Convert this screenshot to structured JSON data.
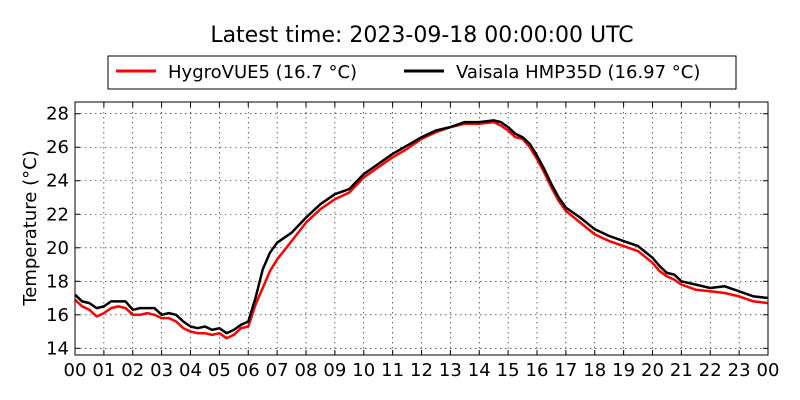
{
  "chart_data": {
    "type": "line",
    "title": "Latest time: 2023-09-18 00:00:00 UTC",
    "xlabel": "",
    "ylabel": "Temperature (°C)",
    "x_tick_labels": [
      "00",
      "01",
      "02",
      "03",
      "04",
      "05",
      "06",
      "07",
      "08",
      "09",
      "10",
      "11",
      "12",
      "13",
      "14",
      "15",
      "16",
      "17",
      "18",
      "19",
      "20",
      "21",
      "22",
      "23",
      "00"
    ],
    "y_ticks": [
      14,
      16,
      18,
      20,
      22,
      24,
      26,
      28
    ],
    "ylim": [
      13.6,
      28.7
    ],
    "xlim_hours": [
      0,
      24
    ],
    "grid": true,
    "legend_placement": "top-center",
    "series": [
      {
        "name": "HygroVUE5 (16.7 °C)",
        "color": "#ff0000",
        "x": [
          0,
          0.25,
          0.5,
          0.75,
          1,
          1.25,
          1.5,
          1.75,
          2,
          2.25,
          2.5,
          2.75,
          3,
          3.25,
          3.5,
          3.75,
          4,
          4.25,
          4.5,
          4.75,
          5,
          5.25,
          5.5,
          5.75,
          6,
          6.25,
          6.5,
          6.75,
          7,
          7.5,
          8,
          8.5,
          9,
          9.5,
          10,
          10.5,
          11,
          11.5,
          12,
          12.5,
          13,
          13.5,
          14,
          14.5,
          14.75,
          15,
          15.25,
          15.5,
          15.75,
          16,
          16.25,
          16.5,
          16.75,
          17,
          17.5,
          18,
          18.5,
          19,
          19.5,
          20,
          20.25,
          20.5,
          20.75,
          21,
          21.5,
          22,
          22.5,
          23,
          23.5,
          24
        ],
        "values": [
          16.9,
          16.5,
          16.3,
          15.9,
          16.1,
          16.4,
          16.5,
          16.4,
          16.0,
          16.0,
          16.1,
          16.0,
          15.8,
          15.8,
          15.6,
          15.2,
          15.0,
          14.9,
          14.9,
          14.8,
          14.9,
          14.6,
          14.8,
          15.2,
          15.3,
          16.6,
          17.6,
          18.6,
          19.3,
          20.4,
          21.5,
          22.3,
          22.9,
          23.3,
          24.2,
          24.8,
          25.4,
          25.9,
          26.5,
          26.9,
          27.2,
          27.4,
          27.4,
          27.5,
          27.3,
          27.0,
          26.6,
          26.5,
          26.0,
          25.3,
          24.5,
          23.6,
          22.8,
          22.2,
          21.5,
          20.8,
          20.4,
          20.1,
          19.8,
          19.1,
          18.6,
          18.3,
          18.1,
          17.8,
          17.5,
          17.4,
          17.3,
          17.1,
          16.8,
          16.7
        ]
      },
      {
        "name": "Vaisala HMP35D (16.97 °C)",
        "color": "#000000",
        "x": [
          0,
          0.25,
          0.5,
          0.75,
          1,
          1.25,
          1.5,
          1.75,
          2,
          2.25,
          2.5,
          2.75,
          3,
          3.25,
          3.5,
          3.75,
          4,
          4.25,
          4.5,
          4.75,
          5,
          5.25,
          5.5,
          5.75,
          6,
          6.25,
          6.5,
          6.75,
          7,
          7.5,
          8,
          8.5,
          9,
          9.5,
          10,
          10.5,
          11,
          11.5,
          12,
          12.5,
          13,
          13.5,
          14,
          14.5,
          14.75,
          15,
          15.25,
          15.5,
          15.75,
          16,
          16.25,
          16.5,
          16.75,
          17,
          17.5,
          18,
          18.5,
          19,
          19.5,
          20,
          20.25,
          20.5,
          20.75,
          21,
          21.5,
          22,
          22.5,
          23,
          23.5,
          24
        ],
        "values": [
          17.2,
          16.8,
          16.7,
          16.4,
          16.5,
          16.8,
          16.8,
          16.8,
          16.3,
          16.4,
          16.4,
          16.4,
          16.0,
          16.1,
          16.0,
          15.6,
          15.3,
          15.2,
          15.3,
          15.1,
          15.2,
          14.9,
          15.1,
          15.4,
          15.6,
          17.0,
          18.7,
          19.7,
          20.3,
          20.9,
          21.8,
          22.6,
          23.2,
          23.5,
          24.4,
          25.0,
          25.6,
          26.1,
          26.6,
          27.0,
          27.2,
          27.5,
          27.5,
          27.6,
          27.5,
          27.2,
          26.8,
          26.6,
          26.2,
          25.5,
          24.7,
          23.8,
          23.0,
          22.4,
          21.8,
          21.1,
          20.7,
          20.4,
          20.1,
          19.4,
          18.9,
          18.5,
          18.4,
          18.0,
          17.8,
          17.6,
          17.7,
          17.4,
          17.1,
          17.0
        ]
      }
    ]
  }
}
